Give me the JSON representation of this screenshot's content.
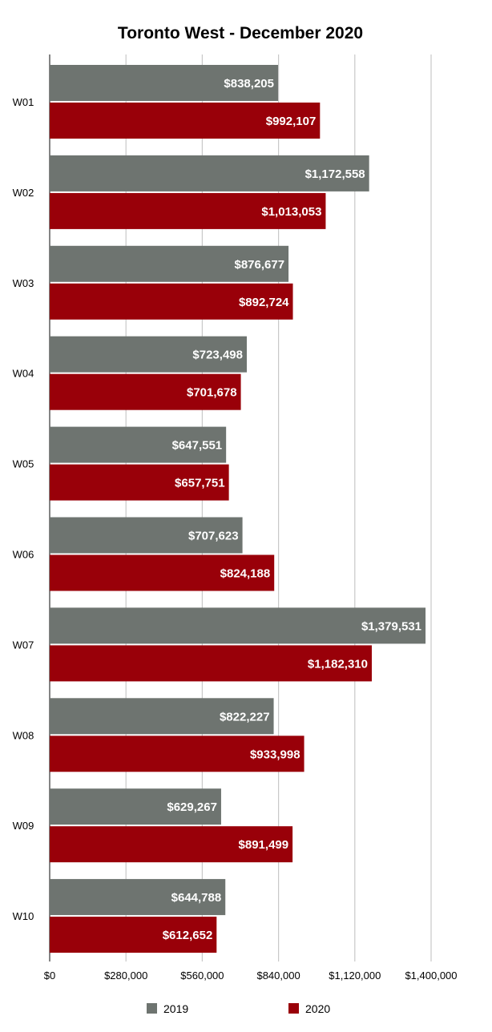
{
  "chart_data": {
    "type": "bar",
    "orientation": "horizontal",
    "title": "Toronto West - December 2020",
    "xlabel": "",
    "ylabel": "",
    "categories": [
      "W01",
      "W02",
      "W03",
      "W04",
      "W05",
      "W06",
      "W07",
      "W08",
      "W09",
      "W10"
    ],
    "series": [
      {
        "name": "2019",
        "color": "#6e7470",
        "values": [
          838205,
          1172558,
          876677,
          723498,
          647551,
          707623,
          1379531,
          822227,
          629267,
          644788
        ],
        "labels": [
          "$838,205",
          "$1,172,558",
          "$876,677",
          "$723,498",
          "$647,551",
          "$707,623",
          "$1,379,531",
          "$822,227",
          "$629,267",
          "$644,788"
        ]
      },
      {
        "name": "2020",
        "color": "#990009",
        "values": [
          992107,
          1013053,
          892724,
          701678,
          657751,
          824188,
          1182310,
          933998,
          891499,
          612652
        ],
        "labels": [
          "$992,107",
          "$1,013,053",
          "$892,724",
          "$701,678",
          "$657,751",
          "$824,188",
          "$1,182,310",
          "$933,998",
          "$891,499",
          "$612,652"
        ]
      }
    ],
    "xlim": [
      0,
      1400000
    ],
    "xticks": [
      0,
      280000,
      560000,
      840000,
      1120000,
      1400000
    ],
    "xtick_labels": [
      "$0",
      "$280,000",
      "$560,000",
      "$840,000",
      "$1,120,000",
      "$1,400,000"
    ],
    "grid": true,
    "legend": "bottom"
  }
}
